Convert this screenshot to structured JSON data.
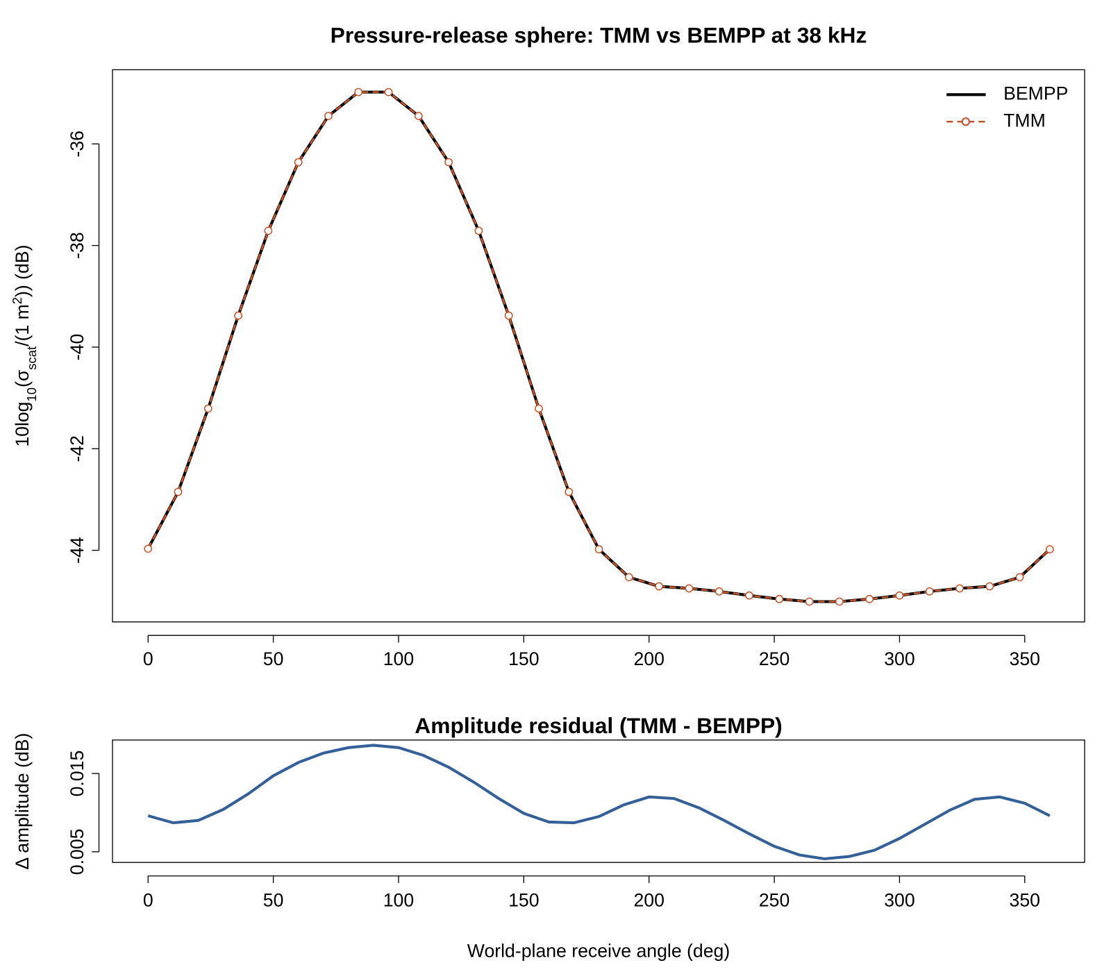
{
  "chart_data": [
    {
      "type": "line",
      "title": "Pressure-release sphere: TMM vs BEMPP at 38 kHz",
      "ylabel": [
        "10log",
        "10",
        "(σ",
        "scat",
        "/(1 m",
        "2",
        ")) (dB)"
      ],
      "x": [
        0,
        12,
        24,
        36,
        48,
        60,
        72,
        84,
        96,
        108,
        120,
        132,
        144,
        156,
        168,
        180,
        192,
        204,
        216,
        228,
        240,
        252,
        264,
        276,
        288,
        300,
        312,
        324,
        336,
        348,
        360
      ],
      "series": [
        {
          "name": "BEMPP",
          "color": "#000000",
          "values": [
            -43.97,
            -42.85,
            -41.21,
            -39.38,
            -37.71,
            -36.36,
            -35.45,
            -34.98,
            -34.98,
            -35.45,
            -36.36,
            -37.71,
            -39.38,
            -41.21,
            -42.85,
            -43.98,
            -44.53,
            -44.71,
            -44.75,
            -44.81,
            -44.89,
            -44.96,
            -45.01,
            -45.01,
            -44.96,
            -44.89,
            -44.81,
            -44.75,
            -44.71,
            -44.53,
            -43.98
          ]
        },
        {
          "name": "TMM",
          "color": "#c8552a",
          "markers": true,
          "dashed": true,
          "values": [
            -43.97,
            -42.85,
            -41.21,
            -39.38,
            -37.71,
            -36.36,
            -35.45,
            -34.98,
            -34.98,
            -35.45,
            -36.36,
            -37.71,
            -39.38,
            -41.21,
            -42.85,
            -43.98,
            -44.53,
            -44.71,
            -44.75,
            -44.81,
            -44.89,
            -44.96,
            -45.01,
            -45.01,
            -44.96,
            -44.89,
            -44.81,
            -44.75,
            -44.71,
            -44.53,
            -43.98
          ]
        }
      ],
      "xlim": [
        -14.2,
        373.9
      ],
      "xticks": [
        0,
        50,
        100,
        150,
        200,
        250,
        300,
        350
      ],
      "ylim": [
        -45.41,
        -34.54
      ],
      "yticks": [
        -44,
        -42,
        -40,
        -38,
        -36
      ],
      "legend": "topright"
    },
    {
      "type": "line",
      "title": "Amplitude residual (TMM - BEMPP)",
      "xlabel": "World-plane receive angle (deg)",
      "ylabel": [
        "Δ amplitude (dB)"
      ],
      "x": [
        0,
        10,
        20,
        30,
        40,
        50,
        60,
        70,
        80,
        90,
        100,
        110,
        120,
        130,
        140,
        150,
        160,
        170,
        180,
        190,
        200,
        210,
        220,
        230,
        240,
        250,
        260,
        270,
        280,
        290,
        300,
        310,
        320,
        330,
        340,
        350,
        360
      ],
      "series": [
        {
          "color": "#34609a",
          "values": [
            0.0096,
            0.0087,
            0.009,
            0.0104,
            0.0124,
            0.0147,
            0.0164,
            0.0176,
            0.0183,
            0.0186,
            0.0183,
            0.0173,
            0.0158,
            0.0139,
            0.0118,
            0.0099,
            0.0088,
            0.0087,
            0.0095,
            0.011,
            0.012,
            0.0118,
            0.0106,
            0.009,
            0.0073,
            0.0057,
            0.0046,
            0.0041,
            0.0044,
            0.0052,
            0.0067,
            0.0085,
            0.0103,
            0.0117,
            0.012,
            0.0112,
            0.0096
          ]
        }
      ],
      "xlim": [
        -14.2,
        373.9
      ],
      "xticks": [
        0,
        50,
        100,
        150,
        200,
        250,
        300,
        350
      ],
      "ylim": [
        0.00364,
        0.01927
      ],
      "yticks": [
        0.005,
        0.015
      ]
    }
  ]
}
